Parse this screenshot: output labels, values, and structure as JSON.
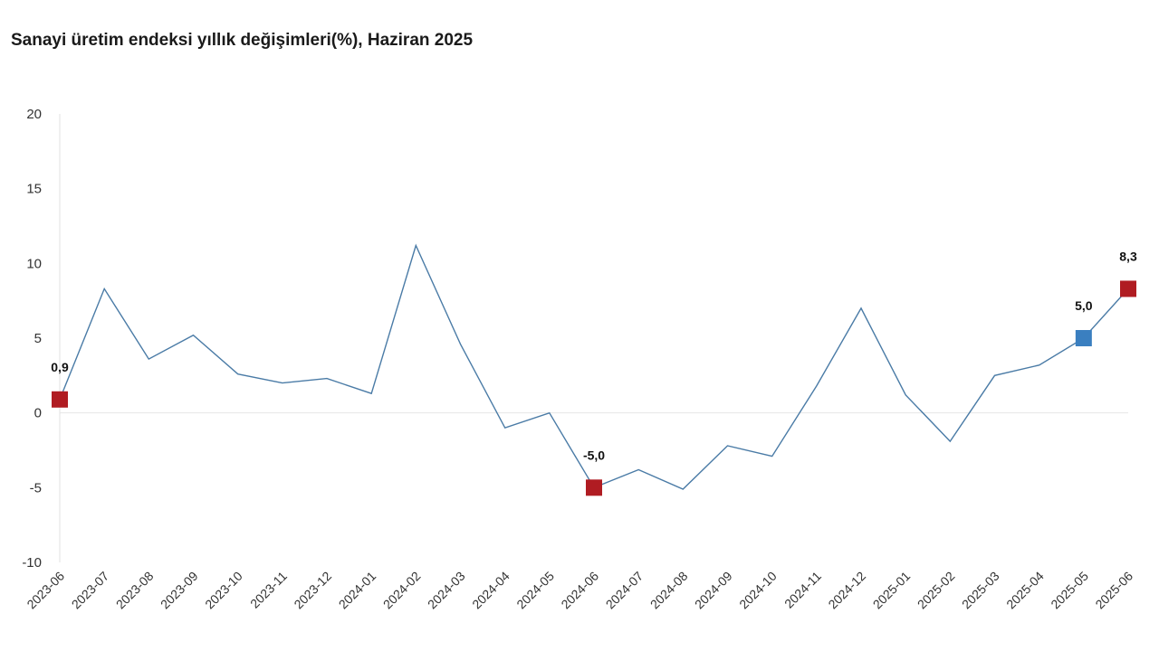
{
  "chart_data": {
    "type": "line",
    "title": "Sanayi üretim endeksi yıllık değişimleri(%), Haziran 2025",
    "xlabel": "",
    "ylabel": "",
    "ylim": [
      -10,
      20
    ],
    "yticks": [
      20,
      15,
      10,
      5,
      0,
      -5,
      -10
    ],
    "categories": [
      "2023-06",
      "2023-07",
      "2023-08",
      "2023-09",
      "2023-10",
      "2023-11",
      "2023-12",
      "2024-01",
      "2024-02",
      "2024-03",
      "2024-04",
      "2024-05",
      "2024-06",
      "2024-07",
      "2024-08",
      "2024-09",
      "2024-10",
      "2024-11",
      "2024-12",
      "2025-01",
      "2025-02",
      "2025-03",
      "2025-04",
      "2025-05",
      "2025-06"
    ],
    "series": [
      {
        "values": [
          0.9,
          8.3,
          3.6,
          5.2,
          2.6,
          2.0,
          2.3,
          1.3,
          11.2,
          4.6,
          -1.0,
          0.0,
          -5.0,
          -3.8,
          -5.1,
          -2.2,
          -2.9,
          1.8,
          7.0,
          1.2,
          -1.9,
          2.5,
          3.2,
          5.0,
          8.3
        ],
        "color": "#4a7ba6"
      }
    ],
    "highlights": [
      {
        "index": 0,
        "label": "0,9",
        "color": "#b01c22"
      },
      {
        "index": 12,
        "label": "-5,0",
        "color": "#b01c22"
      },
      {
        "index": 23,
        "label": "5,0",
        "color": "#3a7fc0"
      },
      {
        "index": 24,
        "label": "8,3",
        "color": "#b01c22"
      }
    ],
    "grid": false,
    "zero_line_color": "#e6e6e6"
  }
}
